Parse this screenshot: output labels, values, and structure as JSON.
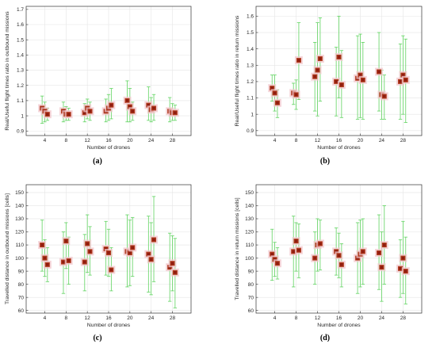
{
  "chart_data": [
    {
      "type": "scatter",
      "caption": "(a)",
      "xlabel": "Number of drones",
      "ylabel": "Real/Useful flight times ratio in outbound missions",
      "xticks": [
        4,
        8,
        12,
        16,
        20,
        24,
        28
      ],
      "yticks": [
        0.9,
        1,
        1.1,
        1.2,
        1.3,
        1.4,
        1.5,
        1.6,
        1.7
      ],
      "xlim": [
        0.5,
        31.5
      ],
      "ylim": [
        0.87,
        1.72
      ],
      "grid": true,
      "series": [
        {
          "points": [
            {
              "x": 3.5,
              "y": 1.05,
              "lo": 0.95,
              "hi": 1.13
            },
            {
              "x": 4.0,
              "y": 1.03,
              "lo": 0.96,
              "hi": 1.09
            },
            {
              "x": 4.5,
              "y": 1.01,
              "lo": 0.97,
              "hi": 1.05
            },
            {
              "x": 7.5,
              "y": 1.03,
              "lo": 0.96,
              "hi": 1.09
            },
            {
              "x": 8.0,
              "y": 1.01,
              "lo": 0.97,
              "hi": 1.06
            },
            {
              "x": 8.5,
              "y": 1.01,
              "lo": 0.97,
              "hi": 1.05
            },
            {
              "x": 11.5,
              "y": 1.02,
              "lo": 0.96,
              "hi": 1.08
            },
            {
              "x": 12.0,
              "y": 1.05,
              "lo": 0.98,
              "hi": 1.11
            },
            {
              "x": 12.5,
              "y": 1.03,
              "lo": 0.97,
              "hi": 1.09
            },
            {
              "x": 15.5,
              "y": 1.03,
              "lo": 0.96,
              "hi": 1.11
            },
            {
              "x": 16.0,
              "y": 1.05,
              "lo": 0.97,
              "hi": 1.14
            },
            {
              "x": 16.5,
              "y": 1.07,
              "lo": 0.98,
              "hi": 1.18
            },
            {
              "x": 19.5,
              "y": 1.1,
              "lo": 0.96,
              "hi": 1.23
            },
            {
              "x": 20.0,
              "y": 1.06,
              "lo": 0.96,
              "hi": 1.18
            },
            {
              "x": 20.5,
              "y": 1.03,
              "lo": 0.97,
              "hi": 1.09
            },
            {
              "x": 23.5,
              "y": 1.07,
              "lo": 0.97,
              "hi": 1.19
            },
            {
              "x": 24.0,
              "y": 1.04,
              "lo": 0.96,
              "hi": 1.12
            },
            {
              "x": 24.5,
              "y": 1.05,
              "lo": 0.97,
              "hi": 1.14
            },
            {
              "x": 27.5,
              "y": 1.03,
              "lo": 0.96,
              "hi": 1.12
            },
            {
              "x": 28.0,
              "y": 1.02,
              "lo": 0.97,
              "hi": 1.08
            },
            {
              "x": 28.5,
              "y": 1.02,
              "lo": 0.97,
              "hi": 1.07
            }
          ]
        }
      ]
    },
    {
      "type": "scatter",
      "caption": "(b)",
      "xlabel": "Number of drones",
      "ylabel": "Real/Useful flight times ratio in return missions",
      "xticks": [
        4,
        8,
        12,
        16,
        20,
        24,
        28
      ],
      "yticks": [
        0.9,
        1,
        1.1,
        1.2,
        1.3,
        1.4,
        1.5,
        1.6
      ],
      "xlim": [
        0.5,
        31.5
      ],
      "ylim": [
        0.87,
        1.66
      ],
      "grid": true,
      "series": [
        {
          "points": [
            {
              "x": 3.5,
              "y": 1.16,
              "lo": 1.08,
              "hi": 1.24
            },
            {
              "x": 4.0,
              "y": 1.13,
              "lo": 1.02,
              "hi": 1.24
            },
            {
              "x": 4.5,
              "y": 1.07,
              "lo": 0.98,
              "hi": 1.15
            },
            {
              "x": 7.5,
              "y": 1.13,
              "lo": 1.06,
              "hi": 1.19
            },
            {
              "x": 8.0,
              "y": 1.12,
              "lo": 1.03,
              "hi": 1.21
            },
            {
              "x": 8.5,
              "y": 1.33,
              "lo": 1.09,
              "hi": 1.56
            },
            {
              "x": 11.5,
              "y": 1.23,
              "lo": 1.02,
              "hi": 1.44
            },
            {
              "x": 12.0,
              "y": 1.27,
              "lo": 0.99,
              "hi": 1.56
            },
            {
              "x": 12.5,
              "y": 1.34,
              "lo": 1.08,
              "hi": 1.59
            },
            {
              "x": 15.5,
              "y": 1.2,
              "lo": 0.99,
              "hi": 1.41
            },
            {
              "x": 16.0,
              "y": 1.35,
              "lo": 1.1,
              "hi": 1.6
            },
            {
              "x": 16.5,
              "y": 1.18,
              "lo": 0.98,
              "hi": 1.39
            },
            {
              "x": 19.5,
              "y": 1.22,
              "lo": 0.97,
              "hi": 1.48
            },
            {
              "x": 20.0,
              "y": 1.24,
              "lo": 0.98,
              "hi": 1.49
            },
            {
              "x": 20.5,
              "y": 1.21,
              "lo": 0.97,
              "hi": 1.44
            },
            {
              "x": 23.5,
              "y": 1.26,
              "lo": 1.02,
              "hi": 1.5
            },
            {
              "x": 24.0,
              "y": 1.12,
              "lo": 0.97,
              "hi": 1.27
            },
            {
              "x": 24.5,
              "y": 1.11,
              "lo": 0.97,
              "hi": 1.24
            },
            {
              "x": 27.5,
              "y": 1.2,
              "lo": 0.97,
              "hi": 1.43
            },
            {
              "x": 28.0,
              "y": 1.24,
              "lo": 1.0,
              "hi": 1.48
            },
            {
              "x": 28.5,
              "y": 1.21,
              "lo": 0.95,
              "hi": 1.46
            }
          ]
        }
      ]
    },
    {
      "type": "scatter",
      "caption": "(c)",
      "xlabel": "Number of drones",
      "ylabel": "Travelled distance in outbound missions [cells]",
      "xticks": [
        4,
        8,
        12,
        16,
        20,
        24,
        28
      ],
      "yticks": [
        60,
        70,
        80,
        90,
        100,
        110,
        120,
        130,
        140,
        150
      ],
      "xlim": [
        0.5,
        31.5
      ],
      "ylim": [
        58,
        156
      ],
      "grid": true,
      "series": [
        {
          "points": [
            {
              "x": 3.5,
              "y": 110,
              "lo": 90,
              "hi": 129
            },
            {
              "x": 4.0,
              "y": 100,
              "lo": 86,
              "hi": 114
            },
            {
              "x": 4.5,
              "y": 95,
              "lo": 82,
              "hi": 108
            },
            {
              "x": 7.5,
              "y": 97,
              "lo": 73,
              "hi": 120
            },
            {
              "x": 8.0,
              "y": 113,
              "lo": 92,
              "hi": 127
            },
            {
              "x": 8.5,
              "y": 98,
              "lo": 80,
              "hi": 116
            },
            {
              "x": 11.5,
              "y": 97,
              "lo": 75,
              "hi": 118
            },
            {
              "x": 12.0,
              "y": 111,
              "lo": 89,
              "hi": 133
            },
            {
              "x": 12.5,
              "y": 105,
              "lo": 87,
              "hi": 124
            },
            {
              "x": 15.5,
              "y": 107,
              "lo": 87,
              "hi": 128
            },
            {
              "x": 16.0,
              "y": 104,
              "lo": 86,
              "hi": 122
            },
            {
              "x": 16.5,
              "y": 91,
              "lo": 75,
              "hi": 108
            },
            {
              "x": 19.5,
              "y": 105,
              "lo": 78,
              "hi": 133
            },
            {
              "x": 20.0,
              "y": 104,
              "lo": 79,
              "hi": 129
            },
            {
              "x": 20.5,
              "y": 108,
              "lo": 86,
              "hi": 131
            },
            {
              "x": 23.5,
              "y": 103,
              "lo": 74,
              "hi": 132
            },
            {
              "x": 24.0,
              "y": 99,
              "lo": 72,
              "hi": 127
            },
            {
              "x": 24.5,
              "y": 114,
              "lo": 82,
              "hi": 147
            },
            {
              "x": 27.5,
              "y": 93,
              "lo": 67,
              "hi": 119
            },
            {
              "x": 28.0,
              "y": 96,
              "lo": 75,
              "hi": 117
            },
            {
              "x": 28.5,
              "y": 89,
              "lo": 62,
              "hi": 115
            }
          ]
        }
      ]
    },
    {
      "type": "scatter",
      "caption": "(d)",
      "xlabel": "Number of drones",
      "ylabel": "Travelled distance in return missions [cells]",
      "xticks": [
        4,
        8,
        12,
        16,
        20,
        24,
        28
      ],
      "yticks": [
        60,
        70,
        80,
        90,
        100,
        110,
        120,
        130,
        140,
        150
      ],
      "xlim": [
        0.5,
        31.5
      ],
      "ylim": [
        58,
        156
      ],
      "grid": true,
      "series": [
        {
          "points": [
            {
              "x": 3.5,
              "y": 103,
              "lo": 83,
              "hi": 122
            },
            {
              "x": 4.0,
              "y": 99,
              "lo": 86,
              "hi": 112
            },
            {
              "x": 4.5,
              "y": 96,
              "lo": 84,
              "hi": 108
            },
            {
              "x": 7.5,
              "y": 105,
              "lo": 78,
              "hi": 132
            },
            {
              "x": 8.0,
              "y": 113,
              "lo": 90,
              "hi": 127
            },
            {
              "x": 8.5,
              "y": 106,
              "lo": 85,
              "hi": 126
            },
            {
              "x": 11.5,
              "y": 100,
              "lo": 80,
              "hi": 120
            },
            {
              "x": 12.0,
              "y": 110,
              "lo": 90,
              "hi": 130
            },
            {
              "x": 12.5,
              "y": 111,
              "lo": 91,
              "hi": 129
            },
            {
              "x": 15.5,
              "y": 105,
              "lo": 87,
              "hi": 123
            },
            {
              "x": 16.0,
              "y": 102,
              "lo": 85,
              "hi": 119
            },
            {
              "x": 16.5,
              "y": 95,
              "lo": 78,
              "hi": 111
            },
            {
              "x": 19.5,
              "y": 100,
              "lo": 73,
              "hi": 127
            },
            {
              "x": 20.0,
              "y": 103,
              "lo": 78,
              "hi": 129
            },
            {
              "x": 20.5,
              "y": 105,
              "lo": 80,
              "hi": 130
            },
            {
              "x": 23.5,
              "y": 104,
              "lo": 76,
              "hi": 133
            },
            {
              "x": 24.0,
              "y": 93,
              "lo": 67,
              "hi": 120
            },
            {
              "x": 24.5,
              "y": 110,
              "lo": 80,
              "hi": 140
            },
            {
              "x": 27.5,
              "y": 92,
              "lo": 70,
              "hi": 114
            },
            {
              "x": 28.0,
              "y": 100,
              "lo": 73,
              "hi": 128
            },
            {
              "x": 28.5,
              "y": 90,
              "lo": 65,
              "hi": 116
            }
          ]
        }
      ]
    }
  ],
  "colors": {
    "errorbar": "#5fd35f",
    "marker_outer": "#b23b1e",
    "marker_inner": "#8f1d10",
    "halo": "#f2c7cc",
    "grid": "#e5e5e5",
    "axis": "#333333"
  }
}
